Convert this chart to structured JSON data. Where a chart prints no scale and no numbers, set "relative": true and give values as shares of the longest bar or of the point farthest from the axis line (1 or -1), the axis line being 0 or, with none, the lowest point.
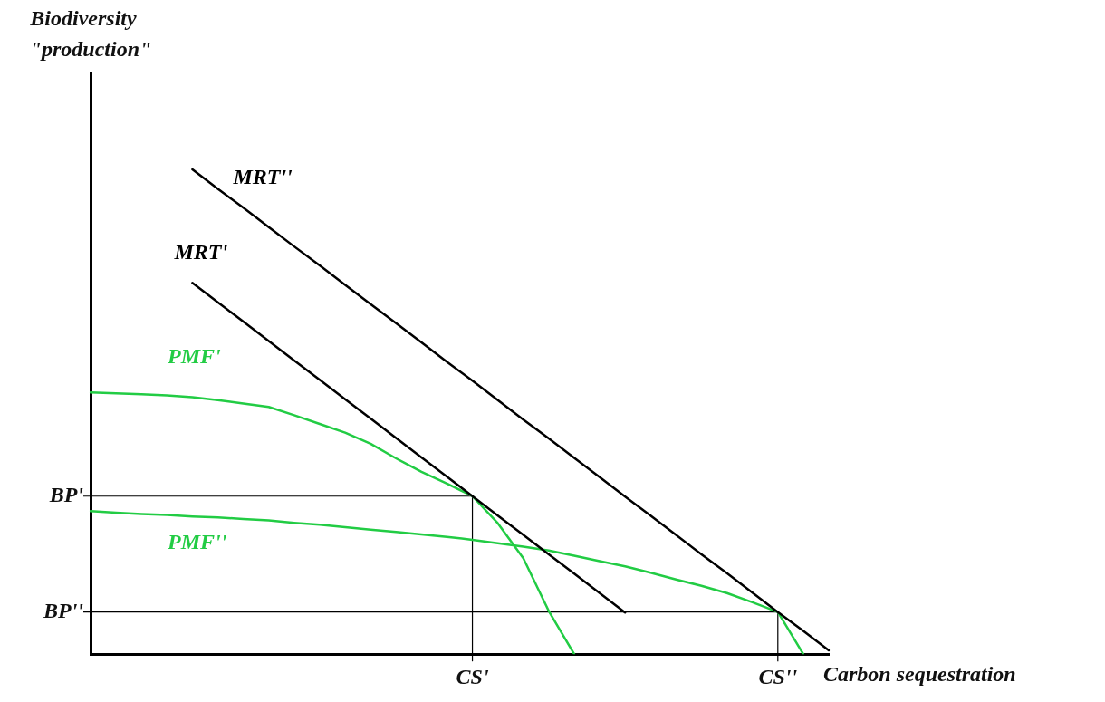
{
  "chart_data": {
    "type": "line",
    "relative": true,
    "xlabel": "Carbon sequestration",
    "ylabel": "Biodiversity \"production\"",
    "categories": [
      null,
      null,
      null,
      null,
      null,
      null,
      null,
      null,
      null,
      null,
      null,
      null,
      null,
      null,
      null,
      "CS'",
      null,
      null,
      null,
      null,
      null,
      null,
      null,
      null,
      null,
      null,
      null,
      "CS''",
      null,
      null
    ],
    "grid": false,
    "legend": false,
    "marker": "none",
    "line_style": "solid",
    "ref_lines": [
      {
        "axis": "y",
        "value": 0.326,
        "label": "BP'"
      },
      {
        "axis": "y",
        "value": 0.087,
        "label": "BP''"
      },
      {
        "axis": "x",
        "value": "CS'"
      },
      {
        "axis": "x",
        "value": "CS''"
      }
    ],
    "series": [
      {
        "name": "MRT''",
        "color": "#000000",
        "values": [
          null,
          null,
          null,
          null,
          1,
          0.96,
          0.921,
          0.881,
          0.841,
          0.802,
          0.762,
          0.722,
          0.683,
          0.643,
          0.603,
          0.564,
          0.524,
          0.484,
          0.445,
          0.405,
          0.365,
          0.325,
          0.286,
          0.246,
          0.206,
          0.167,
          0.127,
          0.087,
          0.048,
          0.008
        ]
      },
      {
        "name": "MRT'",
        "color": "#000000",
        "values": [
          null,
          null,
          null,
          null,
          0.766,
          0.726,
          0.686,
          0.646,
          0.606,
          0.566,
          0.526,
          0.486,
          0.446,
          0.406,
          0.366,
          0.326,
          0.286,
          0.246,
          0.206,
          0.166,
          0.126,
          0.086,
          null,
          null,
          null,
          null,
          null,
          null,
          null,
          null
        ]
      },
      {
        "name": "PMF'",
        "color": "#22cc44",
        "values": [
          0.54,
          0.538,
          0.536,
          0.534,
          0.53,
          0.524,
          0.517,
          0.51,
          0.493,
          0.475,
          0.457,
          0.434,
          0.404,
          0.376,
          0.352,
          0.326,
          0.27,
          0.198,
          0.089,
          0,
          null,
          null,
          null,
          null,
          null,
          null,
          null,
          null,
          null,
          null
        ]
      },
      {
        "name": "PMF''",
        "color": "#22cc44",
        "values": [
          0.295,
          0.292,
          0.289,
          0.287,
          0.284,
          0.282,
          0.279,
          0.276,
          0.271,
          0.267,
          0.262,
          0.257,
          0.252,
          0.247,
          0.242,
          0.236,
          0.229,
          0.222,
          0.214,
          0.203,
          0.192,
          0.181,
          0.168,
          0.154,
          0.141,
          0.126,
          0.107,
          0.087,
          0,
          null
        ]
      }
    ]
  }
}
